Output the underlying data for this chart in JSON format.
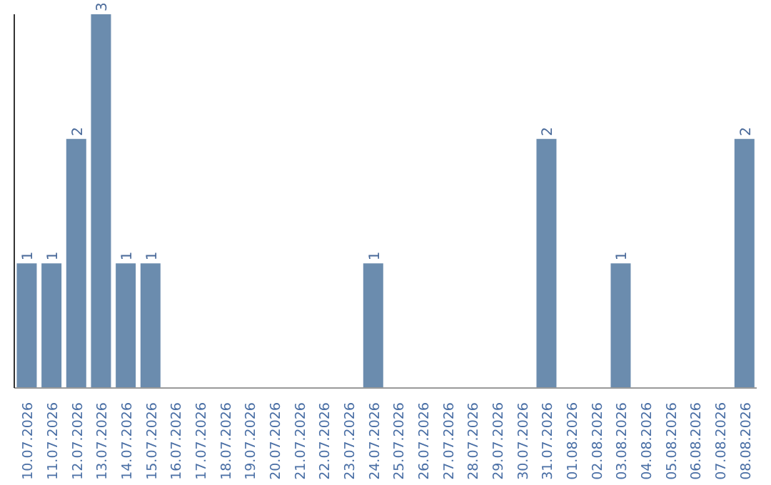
{
  "chart_data": {
    "type": "bar",
    "categories": [
      "10.07.2026",
      "11.07.2026",
      "12.07.2026",
      "13.07.2026",
      "14.07.2026",
      "15.07.2026",
      "16.07.2026",
      "17.07.2026",
      "18.07.2026",
      "19.07.2026",
      "20.07.2026",
      "21.07.2026",
      "22.07.2026",
      "23.07.2026",
      "24.07.2026",
      "25.07.2026",
      "26.07.2026",
      "27.07.2026",
      "28.07.2026",
      "29.07.2026",
      "30.07.2026",
      "31.07.2026",
      "01.08.2026",
      "02.08.2026",
      "03.08.2026",
      "04.08.2026",
      "05.08.2026",
      "06.08.2026",
      "07.08.2026",
      "08.08.2026"
    ],
    "values": [
      1,
      1,
      2,
      3,
      1,
      1,
      0,
      0,
      0,
      0,
      0,
      0,
      0,
      0,
      1,
      0,
      0,
      0,
      0,
      0,
      0,
      2,
      0,
      0,
      1,
      0,
      0,
      0,
      0,
      2
    ],
    "value_labels": [
      "1",
      "1",
      "2",
      "3",
      "1",
      "1",
      null,
      null,
      null,
      null,
      null,
      null,
      null,
      null,
      "1",
      null,
      null,
      null,
      null,
      null,
      null,
      "2",
      null,
      null,
      "1",
      null,
      null,
      null,
      null,
      "2"
    ],
    "color": "#6b8cae",
    "tick_labels": "x"
  }
}
